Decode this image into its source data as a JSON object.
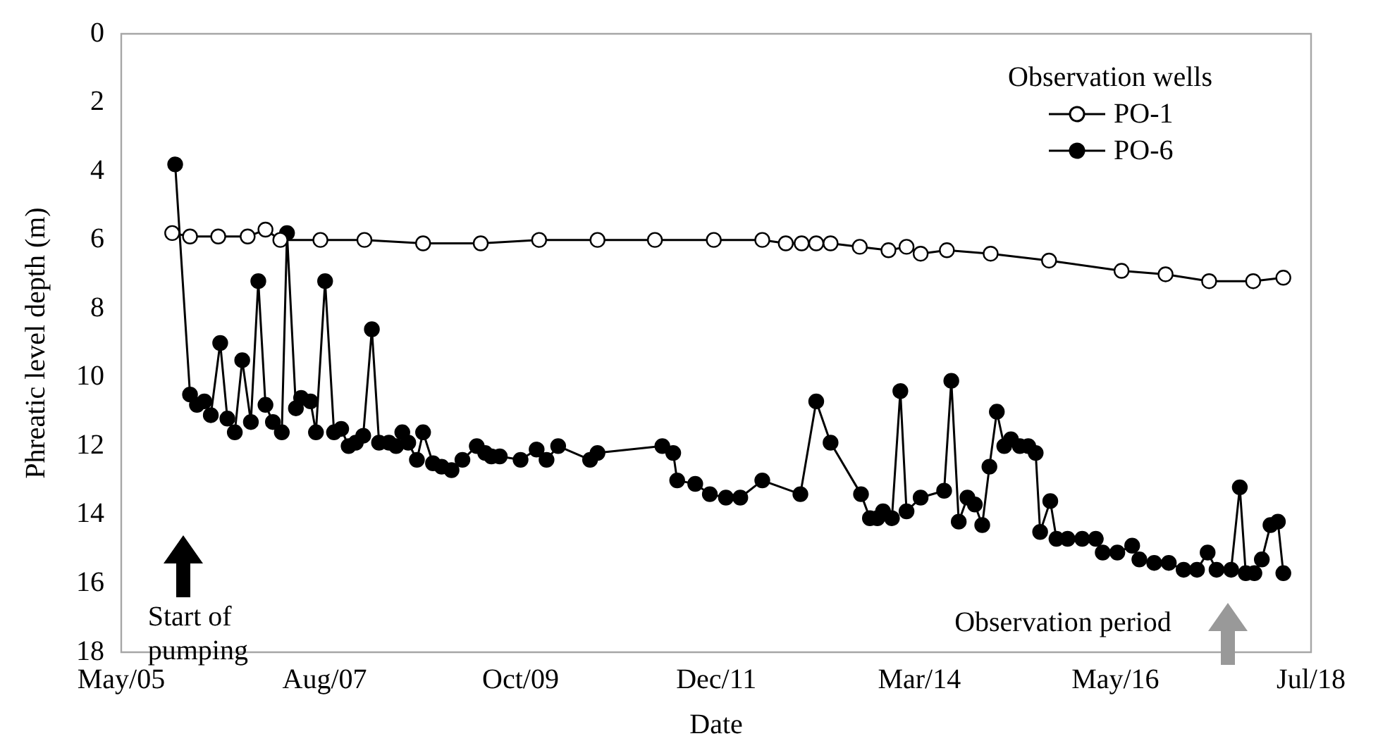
{
  "chart_data": {
    "type": "line",
    "xlabel": "Date",
    "ylabel": "Phreatic level depth (m)",
    "legend_title": "Observation wells",
    "xlim": [
      "2005-05",
      "2018-07"
    ],
    "xticks": [
      {
        "value": "2005-05",
        "label": "May/05"
      },
      {
        "value": "2007-08",
        "label": "Aug/07"
      },
      {
        "value": "2009-10",
        "label": "Oct/09"
      },
      {
        "value": "2011-12",
        "label": "Dec/11"
      },
      {
        "value": "2014-03",
        "label": "Mar/14"
      },
      {
        "value": "2016-05",
        "label": "May/16"
      },
      {
        "value": "2018-07",
        "label": "Jul/18"
      }
    ],
    "ylim": [
      18,
      0
    ],
    "yticks": [
      0,
      2,
      4,
      6,
      8,
      10,
      12,
      14,
      16,
      18
    ],
    "grid": false,
    "legend": "top right",
    "marker": "circle",
    "line_style": "solid",
    "series": [
      {
        "name": "PO-1",
        "color": "#000000",
        "x": [
          "2005-11-23",
          "2006-02-03",
          "2006-05-28",
          "2006-09-24",
          "2006-12-05",
          "2007-02-03",
          "2007-07-15",
          "2008-01-09",
          "2008-09-02",
          "2009-04-23",
          "2009-12-15",
          "2010-08-08",
          "2011-03-28",
          "2011-11-21",
          "2012-06-04",
          "2012-09-07",
          "2012-11-10",
          "2013-01-08",
          "2013-03-07",
          "2013-07-03",
          "2013-10-27",
          "2014-01-08",
          "2014-03-06",
          "2014-06-20",
          "2014-12-14",
          "2015-08-07",
          "2016-05-26",
          "2016-11-20",
          "2017-05-15",
          "2017-11-09",
          "2018-03-11"
        ],
        "values": [
          5.8,
          5.9,
          5.9,
          5.9,
          5.7,
          6.0,
          6.0,
          6.0,
          6.1,
          6.1,
          6.0,
          6.0,
          6.0,
          6.0,
          6.0,
          6.1,
          6.1,
          6.1,
          6.1,
          6.2,
          6.3,
          6.2,
          6.4,
          6.3,
          6.4,
          6.6,
          6.9,
          7.0,
          7.2,
          7.2,
          7.1
        ]
      },
      {
        "name": "PO-6",
        "color": "#000000",
        "x": [
          "2005-12-05",
          "2006-02-03",
          "2006-03-03",
          "2006-04-02",
          "2006-04-28",
          "2006-06-05",
          "2006-07-04",
          "2006-08-03",
          "2006-09-02",
          "2006-10-07",
          "2006-11-06",
          "2006-12-05",
          "2007-01-04",
          "2007-02-09",
          "2007-03-02",
          "2007-04-07",
          "2007-04-28",
          "2007-06-05",
          "2007-06-27",
          "2007-08-03",
          "2007-09-08",
          "2007-10-07",
          "2007-11-06",
          "2007-12-05",
          "2008-01-04",
          "2008-02-08",
          "2008-03-08",
          "2008-04-17",
          "2008-05-16",
          "2008-06-10",
          "2008-07-04",
          "2008-08-08",
          "2008-09-02",
          "2008-10-12",
          "2008-11-16",
          "2008-12-26",
          "2009-02-08",
          "2009-04-07",
          "2009-05-11",
          "2009-06-05",
          "2009-07-09",
          "2009-10-01",
          "2009-12-05",
          "2010-01-14",
          "2010-03-02",
          "2010-07-09",
          "2010-08-08",
          "2011-04-27",
          "2011-06-10",
          "2011-06-26",
          "2011-09-07",
          "2011-11-05",
          "2012-01-09",
          "2012-03-07",
          "2012-06-04",
          "2012-11-05",
          "2013-01-08",
          "2013-03-07",
          "2013-07-08",
          "2013-08-13",
          "2013-09-12",
          "2013-10-05",
          "2013-11-10",
          "2013-12-14",
          "2014-01-08",
          "2014-03-06",
          "2014-06-09",
          "2014-07-08",
          "2014-08-07",
          "2014-09-11",
          "2014-10-11",
          "2014-11-10",
          "2014-12-09",
          "2015-01-08",
          "2015-02-07",
          "2015-03-06",
          "2015-04-11",
          "2015-05-15",
          "2015-06-14",
          "2015-07-02",
          "2015-08-12",
          "2015-09-06",
          "2015-10-21",
          "2015-12-19",
          "2016-02-12",
          "2016-03-11",
          "2016-05-09",
          "2016-07-08",
          "2016-08-06",
          "2016-10-05",
          "2016-12-03",
          "2017-02-01",
          "2017-03-27",
          "2017-05-09",
          "2017-06-14",
          "2017-08-12",
          "2017-09-16",
          "2017-10-10",
          "2017-11-14",
          "2017-12-14",
          "2018-01-18",
          "2018-02-17",
          "2018-03-11"
        ],
        "values": [
          3.8,
          10.5,
          10.8,
          10.7,
          11.1,
          9.0,
          11.2,
          11.6,
          9.5,
          11.3,
          7.2,
          10.8,
          11.3,
          11.6,
          5.8,
          10.9,
          10.6,
          10.7,
          11.6,
          7.2,
          11.6,
          11.5,
          12.0,
          11.9,
          11.7,
          8.6,
          11.9,
          11.9,
          12.0,
          11.6,
          11.9,
          12.4,
          11.6,
          12.5,
          12.6,
          12.7,
          12.4,
          12.0,
          12.2,
          12.3,
          12.3,
          12.4,
          12.1,
          12.4,
          12.0,
          12.4,
          12.2,
          12.0,
          12.2,
          13.0,
          13.1,
          13.4,
          13.5,
          13.5,
          13.0,
          13.4,
          10.7,
          11.9,
          13.4,
          14.1,
          14.1,
          13.9,
          14.1,
          10.4,
          13.9,
          13.5,
          13.3,
          10.1,
          14.2,
          13.5,
          13.7,
          14.3,
          12.6,
          11.0,
          12.0,
          11.8,
          12.0,
          12.0,
          12.2,
          14.5,
          13.6,
          14.7,
          14.7,
          14.7,
          14.7,
          15.1,
          15.1,
          14.9,
          15.3,
          15.4,
          15.4,
          15.6,
          15.6,
          15.1,
          15.6,
          15.6,
          13.2,
          15.7,
          15.7,
          15.3,
          14.3,
          14.2,
          15.7
        ]
      }
    ],
    "annotations": [
      "Start of pumping",
      "Observation period"
    ]
  }
}
